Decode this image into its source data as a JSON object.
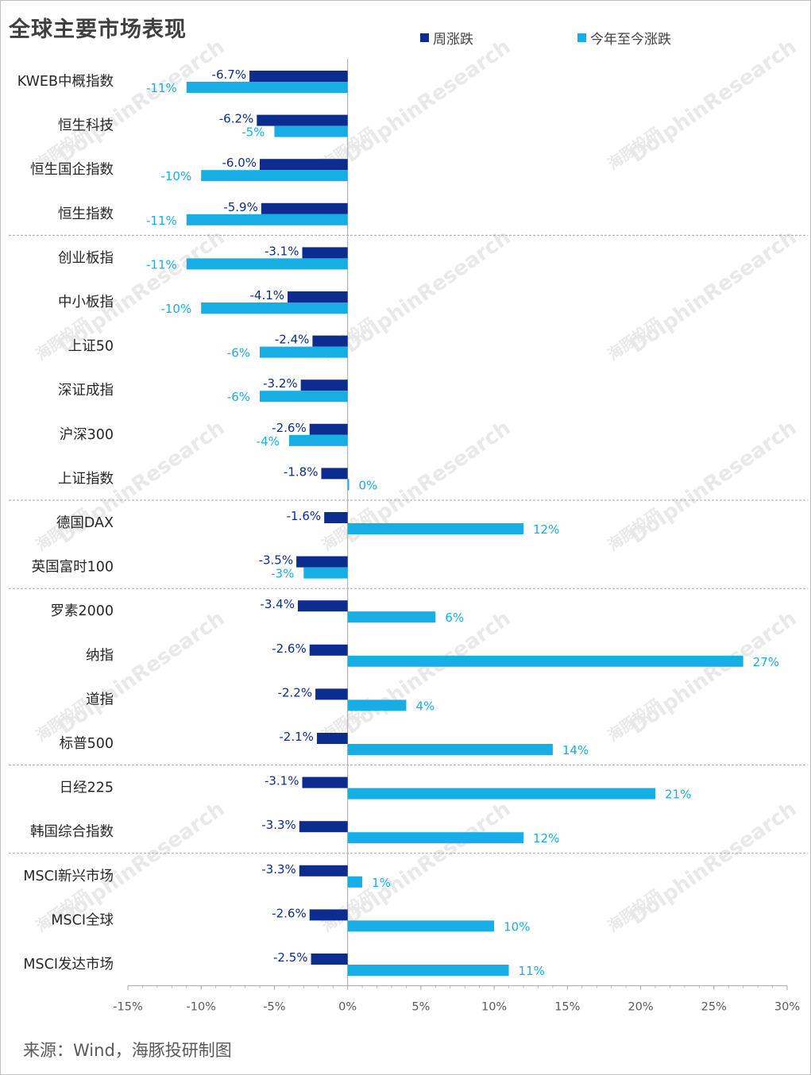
{
  "title": "全球主要市场表现",
  "source": "来源：Wind，海豚投研制图",
  "watermark": {
    "brand": "DolphinResearch",
    "cn": "海豚投研"
  },
  "colors": {
    "weekly": "#0c2c8f",
    "ytd": "#17aee6",
    "weekly_label": "#0c2c8f",
    "ytd_label": "#17aee6",
    "separator": "#a6a6a6",
    "axis": "#a6a6a6"
  },
  "chart_data": {
    "type": "bar",
    "orientation": "horizontal",
    "categories": [
      "KWEB中概指数",
      "恒生科技",
      "恒生国企指数",
      "恒生指数",
      "创业板指",
      "中小板指",
      "上证50",
      "深证成指",
      "沪深300",
      "上证指数",
      "德国DAX",
      "英国富时100",
      "罗素2000",
      "纳指",
      "道指",
      "标普500",
      "日经225",
      "韩国综合指数",
      "MSCI新兴市场",
      "MSCI全球",
      "MSCI发达市场"
    ],
    "series": [
      {
        "name": "周涨跌",
        "values": [
          -6.7,
          -6.2,
          -6.0,
          -5.9,
          -3.1,
          -4.1,
          -2.4,
          -3.2,
          -2.6,
          -1.8,
          -1.6,
          -3.5,
          -3.4,
          -2.6,
          -2.2,
          -2.1,
          -3.1,
          -3.3,
          -3.3,
          -2.6,
          -2.5
        ],
        "labels": [
          "-6.7%",
          "-6.2%",
          "-6.0%",
          "-5.9%",
          "-3.1%",
          "-4.1%",
          "-2.4%",
          "-3.2%",
          "-2.6%",
          "-1.8%",
          "-1.6%",
          "-3.5%",
          "-3.4%",
          "-2.6%",
          "-2.2%",
          "-2.1%",
          "-3.1%",
          "-3.3%",
          "-3.3%",
          "-2.6%",
          "-2.5%"
        ]
      },
      {
        "name": "今年至今涨跌",
        "values": [
          -11,
          -5,
          -10,
          -11,
          -11,
          -10,
          -6,
          -6,
          -4,
          0.1,
          12,
          -3,
          6,
          27,
          4,
          14,
          21,
          12,
          1,
          10,
          11
        ],
        "labels": [
          "-11%",
          "-5%",
          "-10%",
          "-11%",
          "-11%",
          "-10%",
          "-6%",
          "-6%",
          "-4%",
          "0%",
          "12%",
          "-3%",
          "6%",
          "27%",
          "4%",
          "14%",
          "21%",
          "12%",
          "1%",
          "10%",
          "11%"
        ]
      }
    ],
    "xlim": [
      -15,
      30
    ],
    "xticks": [
      -15,
      -10,
      -5,
      0,
      5,
      10,
      15,
      20,
      25,
      30
    ],
    "xtick_labels": [
      "-15%",
      "-10%",
      "-5%",
      "0%",
      "5%",
      "10%",
      "15%",
      "20%",
      "25%",
      "30%"
    ],
    "group_separators_after": [
      3,
      9,
      11,
      15,
      17
    ],
    "legend": "top"
  }
}
